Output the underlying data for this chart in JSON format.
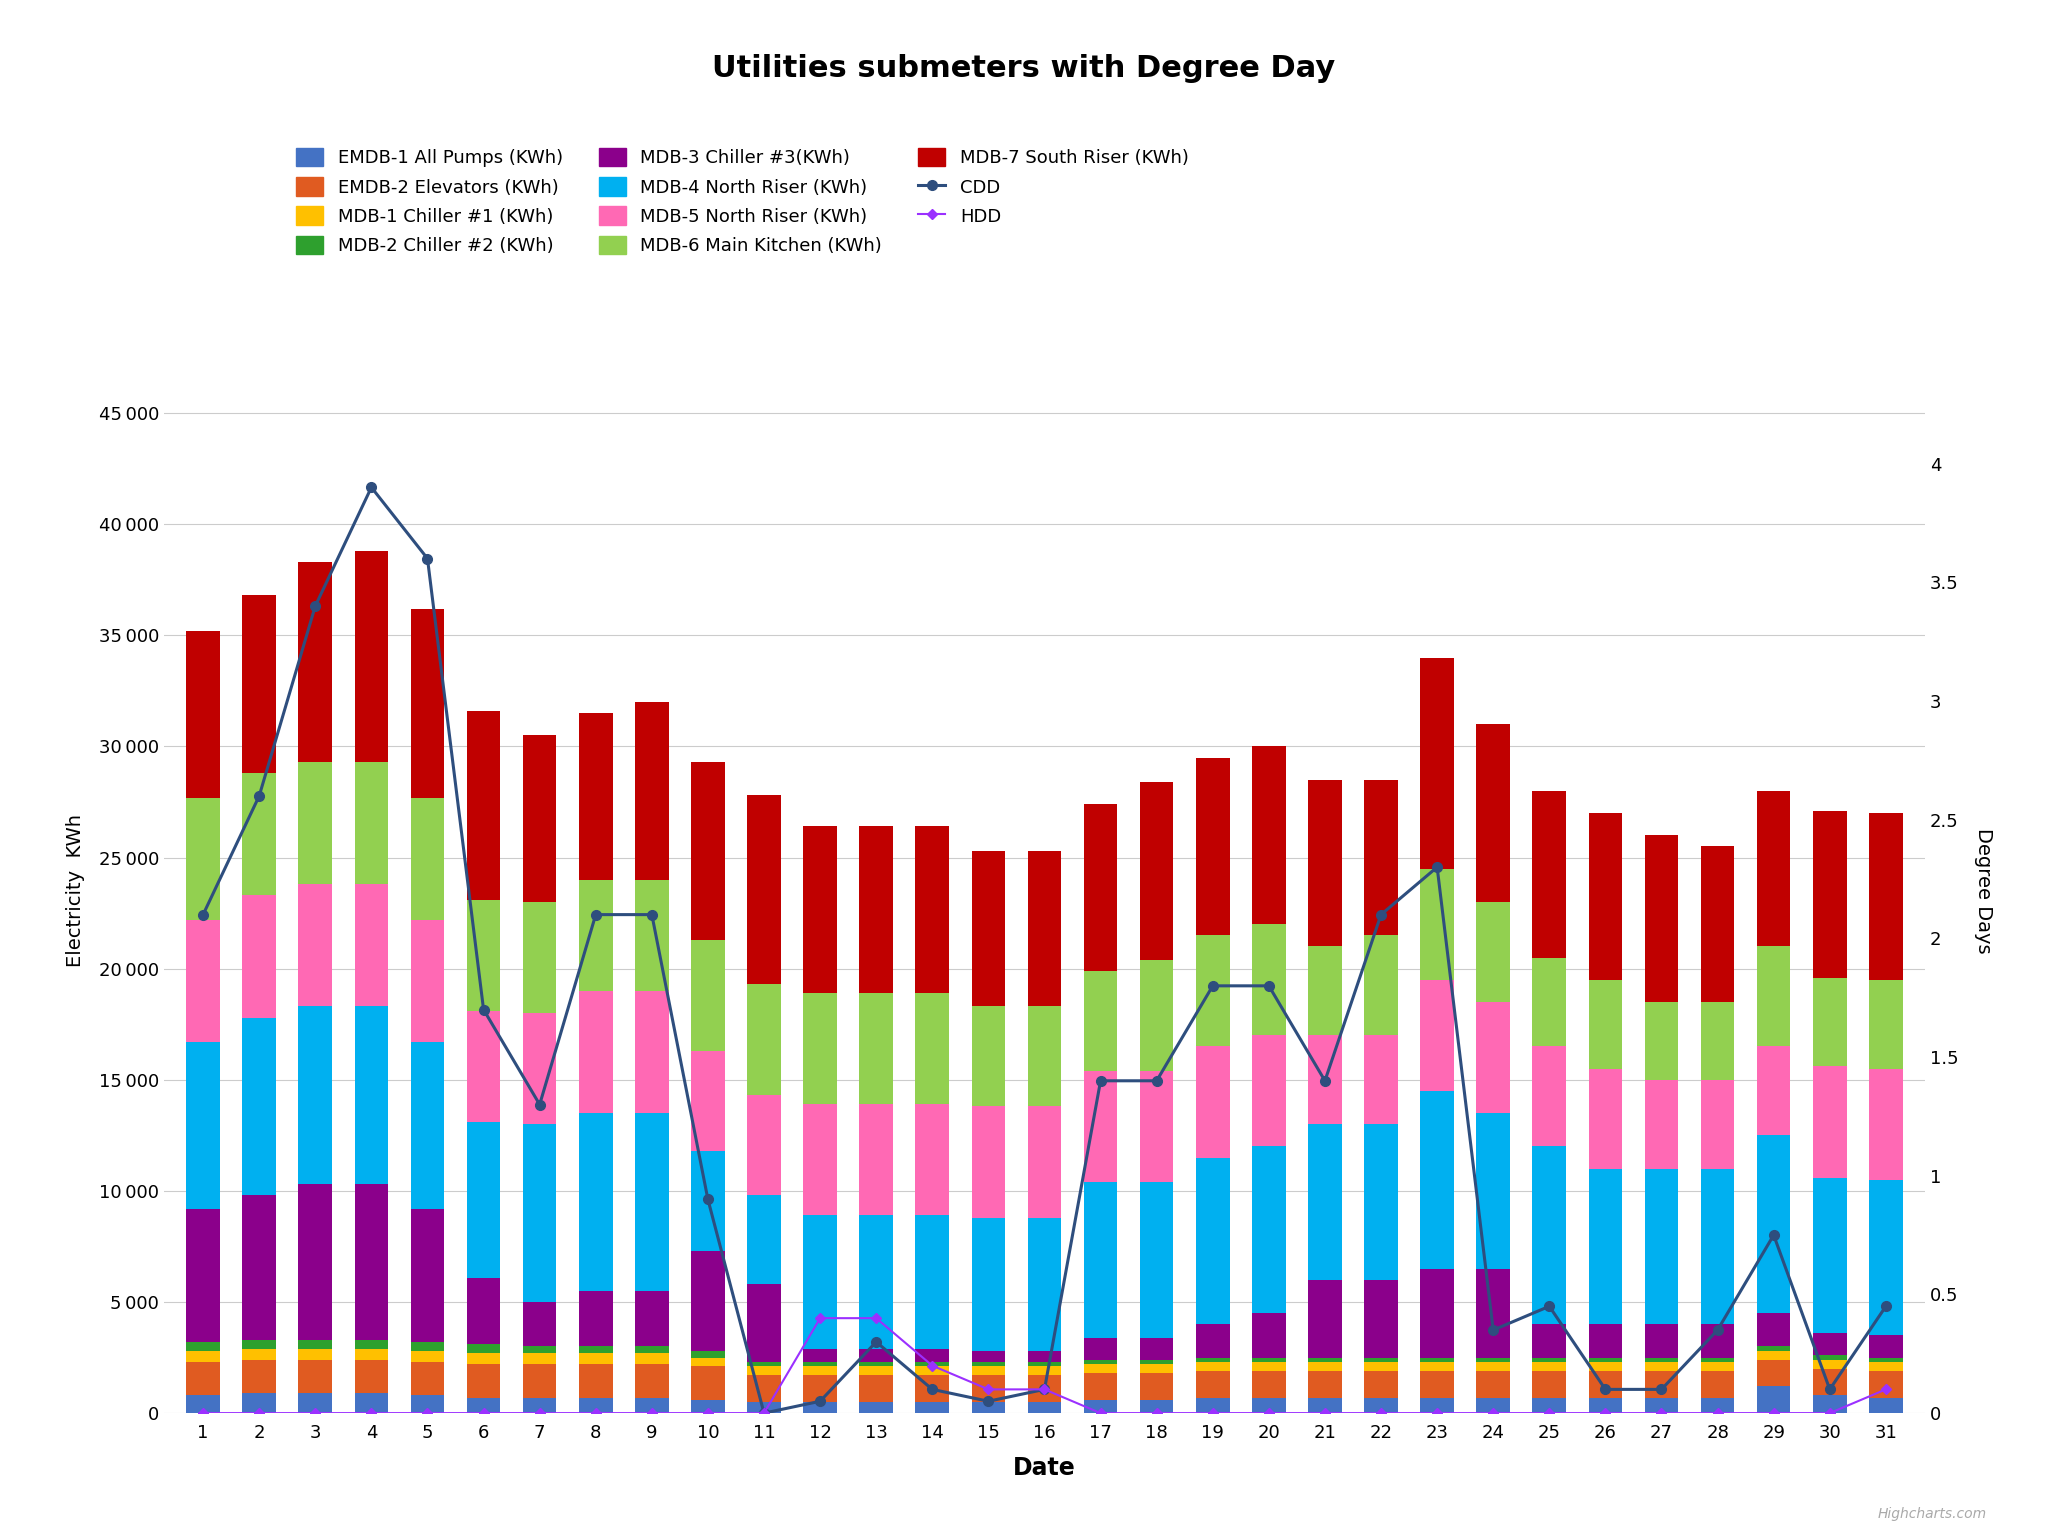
{
  "title": "Utilities submeters with Degree Day",
  "xlabel": "Date",
  "ylabel_left": "Electricity  KWh",
  "ylabel_right": "Degree Days",
  "days": [
    1,
    2,
    3,
    4,
    5,
    6,
    7,
    8,
    9,
    10,
    11,
    12,
    13,
    14,
    15,
    16,
    17,
    18,
    19,
    20,
    21,
    22,
    23,
    24,
    25,
    26,
    27,
    28,
    29,
    30,
    31
  ],
  "series_names": [
    "EMDB-1 All Pumps (KWh)",
    "EMDB-2 Elevators (KWh)",
    "MDB-1 Chiller #1 (KWh)",
    "MDB-2 Chiller #2 (KWh)",
    "MDB-3 Chiller #3(KWh)",
    "MDB-4 North Riser (KWh)",
    "MDB-5 North Riser (KWh)",
    "MDB-6 Main Kitchen (KWh)",
    "MDB-7 South Riser (KWh)"
  ],
  "series_colors": [
    "#4472C4",
    "#E05B21",
    "#FFC000",
    "#2EA02E",
    "#8B008B",
    "#00B0F0",
    "#FF69B4",
    "#92D050",
    "#C00000"
  ],
  "bar_data": {
    "EMDB-1 All Pumps (KWh)": [
      800,
      900,
      900,
      900,
      800,
      700,
      700,
      700,
      700,
      600,
      500,
      500,
      500,
      500,
      500,
      500,
      600,
      600,
      700,
      700,
      700,
      700,
      700,
      700,
      700,
      700,
      700,
      700,
      1200,
      800,
      700
    ],
    "EMDB-2 Elevators (KWh)": [
      1500,
      1500,
      1500,
      1500,
      1500,
      1500,
      1500,
      1500,
      1500,
      1500,
      1200,
      1200,
      1200,
      1200,
      1200,
      1200,
      1200,
      1200,
      1200,
      1200,
      1200,
      1200,
      1200,
      1200,
      1200,
      1200,
      1200,
      1200,
      1200,
      1200,
      1200
    ],
    "MDB-1 Chiller #1 (KWh)": [
      500,
      500,
      500,
      500,
      500,
      500,
      500,
      500,
      500,
      400,
      400,
      400,
      400,
      400,
      400,
      400,
      400,
      400,
      400,
      400,
      400,
      400,
      400,
      400,
      400,
      400,
      400,
      400,
      400,
      400,
      400
    ],
    "MDB-2 Chiller #2 (KWh)": [
      400,
      400,
      400,
      400,
      400,
      400,
      300,
      300,
      300,
      300,
      200,
      200,
      200,
      200,
      200,
      200,
      200,
      200,
      200,
      200,
      200,
      200,
      200,
      200,
      200,
      200,
      200,
      200,
      200,
      200,
      200
    ],
    "MDB-3 Chiller #3(KWh)": [
      6000,
      6500,
      7000,
      7000,
      6000,
      3000,
      2000,
      2500,
      2500,
      4500,
      3500,
      600,
      600,
      600,
      500,
      500,
      1000,
      1000,
      1500,
      2000,
      3500,
      3500,
      4000,
      4000,
      1500,
      1500,
      1500,
      1500,
      1500,
      1000,
      1000
    ],
    "MDB-4 North Riser (KWh)": [
      7500,
      8000,
      8000,
      8000,
      7500,
      7000,
      8000,
      8000,
      8000,
      4500,
      4000,
      6000,
      6000,
      6000,
      6000,
      6000,
      7000,
      7000,
      7500,
      7500,
      7000,
      7000,
      8000,
      7000,
      8000,
      7000,
      7000,
      7000,
      8000,
      7000,
      7000
    ],
    "MDB-5 North Riser (KWh)": [
      5500,
      5500,
      5500,
      5500,
      5500,
      5000,
      5000,
      5500,
      5500,
      4500,
      4500,
      5000,
      5000,
      5000,
      5000,
      5000,
      5000,
      5000,
      5000,
      5000,
      4000,
      4000,
      5000,
      5000,
      4500,
      4500,
      4000,
      4000,
      4000,
      5000,
      5000
    ],
    "MDB-6 Main Kitchen (KWh)": [
      5500,
      5500,
      5500,
      5500,
      5500,
      5000,
      5000,
      5000,
      5000,
      5000,
      5000,
      5000,
      5000,
      5000,
      4500,
      4500,
      4500,
      5000,
      5000,
      5000,
      4000,
      4500,
      5000,
      4500,
      4000,
      4000,
      3500,
      3500,
      4500,
      4000,
      4000
    ],
    "MDB-7 South Riser (KWh)": [
      7500,
      8000,
      9000,
      9500,
      8500,
      8500,
      7500,
      7500,
      8000,
      8000,
      8500,
      7500,
      7500,
      7500,
      7000,
      7000,
      7500,
      8000,
      8000,
      8000,
      7500,
      7000,
      9500,
      8000,
      7500,
      7500,
      7500,
      7000,
      7000,
      7500,
      7500
    ]
  },
  "CDD": [
    2.1,
    2.6,
    3.4,
    3.9,
    3.6,
    1.7,
    1.3,
    2.1,
    2.1,
    0.9,
    0.0,
    0.05,
    0.3,
    0.1,
    0.05,
    0.1,
    1.4,
    1.4,
    1.8,
    1.8,
    1.4,
    2.1,
    2.3,
    0.35,
    0.45,
    0.1,
    0.1,
    0.35,
    0.75,
    0.1,
    0.45
  ],
  "HDD": [
    0.0,
    0.0,
    0.0,
    0.0,
    0.0,
    0.0,
    0.0,
    0.0,
    0.0,
    0.0,
    0.0,
    0.4,
    0.4,
    0.2,
    0.1,
    0.1,
    0.0,
    0.0,
    0.0,
    0.0,
    0.0,
    0.0,
    0.0,
    0.0,
    0.0,
    0.0,
    0.0,
    0.0,
    0.0,
    0.0,
    0.1
  ],
  "ylim_left": [
    0,
    47000
  ],
  "ylim_right": [
    0,
    4.4
  ],
  "yticks_left": [
    0,
    5000,
    10000,
    15000,
    20000,
    25000,
    30000,
    35000,
    40000,
    45000
  ],
  "yticks_right": [
    0,
    0.5,
    1.0,
    1.5,
    2.0,
    2.5,
    3.0,
    3.5,
    4.0
  ],
  "background_color": "#ffffff",
  "grid_color": "#cccccc",
  "title_fontsize": 22,
  "label_fontsize": 14,
  "tick_fontsize": 13,
  "legend_fontsize": 13,
  "cdd_color": "#2E4E7E",
  "hdd_color": "#9B30FF"
}
